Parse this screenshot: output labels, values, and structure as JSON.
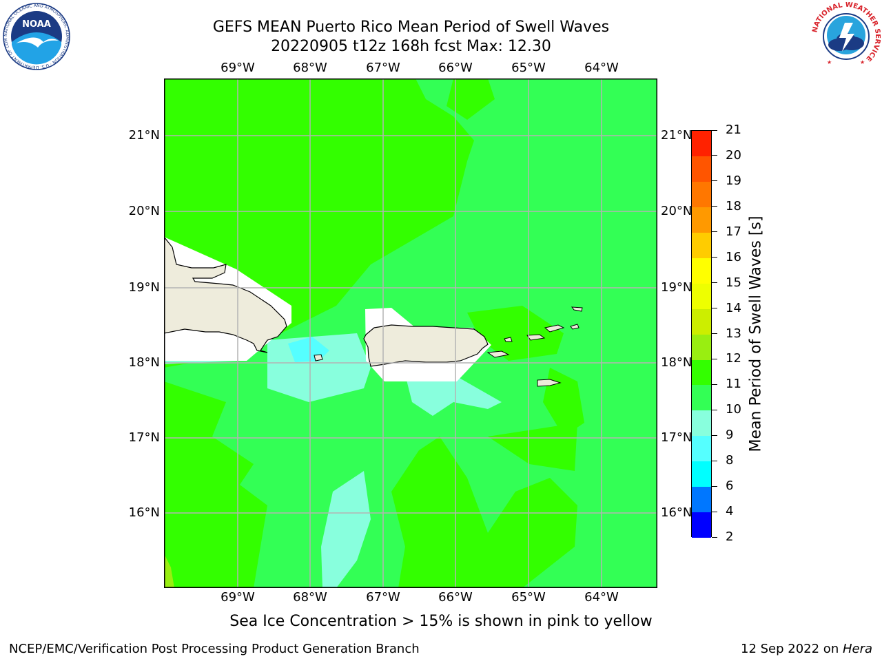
{
  "header": {
    "title_line1": "GEFS MEAN Puerto Rico Mean Period of Swell Waves",
    "title_line2": "20220905 t12z 168h fcst   Max: 12.30"
  },
  "logos": {
    "left_name": "NOAA",
    "left_ring_text": "NATIONAL OCEANIC AND ATMOSPHERIC ADMINISTRATION · U.S. DEPARTMENT OF COMMERCE",
    "right_ring_text": "NATIONAL WEATHER SERVICE"
  },
  "map": {
    "lon_labels": [
      "69°W",
      "68°W",
      "67°W",
      "66°W",
      "65°W",
      "64°W"
    ],
    "lat_labels": [
      "21°N",
      "20°N",
      "19°N",
      "18°N",
      "17°N",
      "16°N"
    ],
    "colors": {
      "ocean_11_12": "#33ff00",
      "ocean_10_11": "#33ff55",
      "ocean_9_10": "#88ffdd",
      "ocean_8_9": "#55ffff",
      "ocean_12_13": "#99ee11",
      "land": "#eeecdc",
      "nodata": "#ffffff",
      "grid": "#b4b4b4"
    }
  },
  "colorbar": {
    "label": "Mean Period of Swell Waves [s]",
    "ticks": [
      "2",
      "4",
      "6",
      "8",
      "9",
      "10",
      "11",
      "12",
      "13",
      "14",
      "15",
      "16",
      "17",
      "18",
      "19",
      "20",
      "21"
    ],
    "colors": [
      "#0000ff",
      "#0077ff",
      "#00ffff",
      "#55ffff",
      "#88ffdd",
      "#33ff55",
      "#33ff00",
      "#99ee11",
      "#ccee00",
      "#eeff00",
      "#ffff00",
      "#ffcc00",
      "#ff9900",
      "#ff7700",
      "#ff5500",
      "#ff2200"
    ]
  },
  "footer": {
    "note": "Sea Ice Concentration > 15% is shown in pink to yellow",
    "left": "NCEP/EMC/Verification Post Processing Product Generation Branch",
    "date": "12 Sep 2022 on ",
    "system": "Hera"
  }
}
